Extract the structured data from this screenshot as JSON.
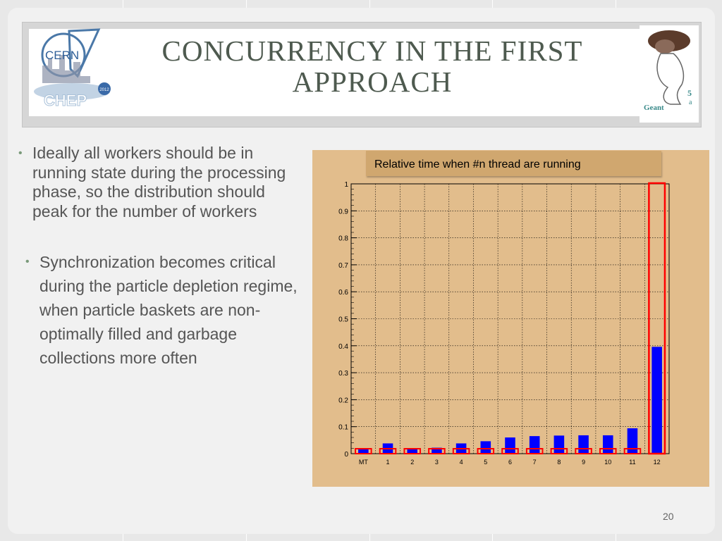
{
  "slide": {
    "title_line1": "CONCURRENCY IN THE FIRST",
    "title_line2": "APPROACH",
    "page_number": "20"
  },
  "logos": {
    "left": {
      "text": "CERN",
      "subtext": "CHEP",
      "year": "2012"
    },
    "right": {
      "text": "Geant"
    }
  },
  "bullets": [
    "Ideally all workers should be in running state during the processing phase, so the distribution should peak  for the number of workers",
    "Synchronization becomes critical during the particle depletion regime, when particle baskets are non-optimally filled and garbage collections more often"
  ],
  "colors": {
    "bar": "#0000ff",
    "highlight": "#ff0000",
    "chart_bg": "#e2bd8c",
    "title": "#4e5a4f"
  },
  "chart_data": {
    "type": "bar",
    "title": "Relative time when #n thread are running",
    "categories": [
      "MT",
      "1",
      "2",
      "3",
      "4",
      "5",
      "6",
      "7",
      "8",
      "9",
      "10",
      "11",
      "12"
    ],
    "values": [
      0.02,
      0.038,
      0.018,
      0.022,
      0.038,
      0.046,
      0.06,
      0.065,
      0.067,
      0.068,
      0.068,
      0.094,
      0.396
    ],
    "ylim": [
      0,
      1
    ],
    "yticks": [
      "0",
      "0.1",
      "0.2",
      "0.3",
      "0.4",
      "0.5",
      "0.6",
      "0.7",
      "0.8",
      "0.9",
      "1"
    ],
    "highlighted_category": "12",
    "grid": true,
    "xlabel": "",
    "ylabel": ""
  }
}
